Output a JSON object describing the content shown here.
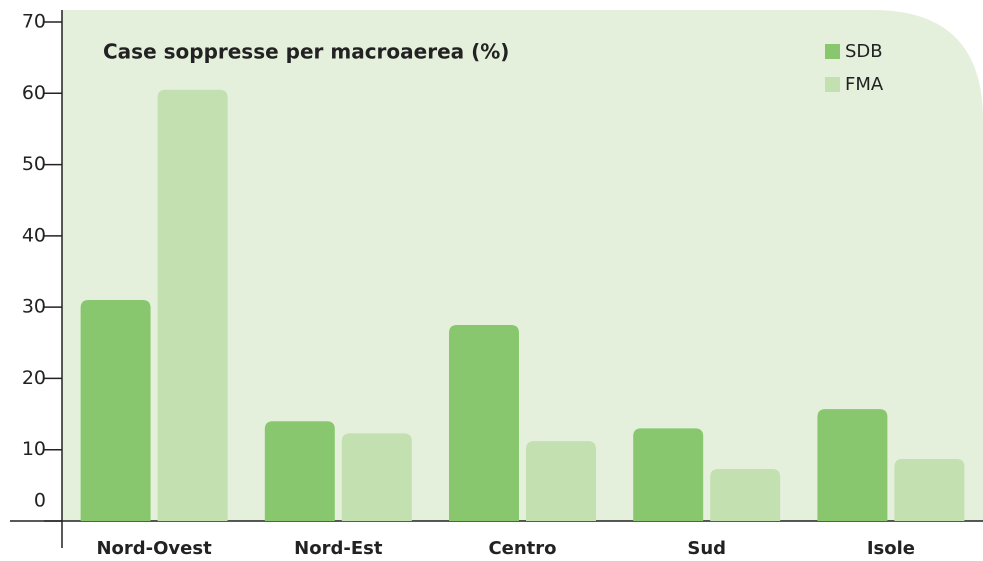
{
  "chart_data": {
    "type": "bar",
    "title": "Case soppresse per macroaerea (%)",
    "categories": [
      "Nord-Ovest",
      "Nord-Est",
      "Centro",
      "Sud",
      "Isole"
    ],
    "series": [
      {
        "name": "SDB",
        "color": "#88c76e",
        "values": [
          31,
          14,
          27.5,
          13,
          15.7
        ]
      },
      {
        "name": "FMA",
        "color": "#c3e0b0",
        "values": [
          60.5,
          12.3,
          11.2,
          7.3,
          8.7
        ]
      }
    ],
    "ylim": [
      0,
      70
    ],
    "yticks": [
      0,
      10,
      20,
      30,
      40,
      50,
      60,
      70
    ],
    "legend": "top-right",
    "background": "#e5f0dc"
  }
}
